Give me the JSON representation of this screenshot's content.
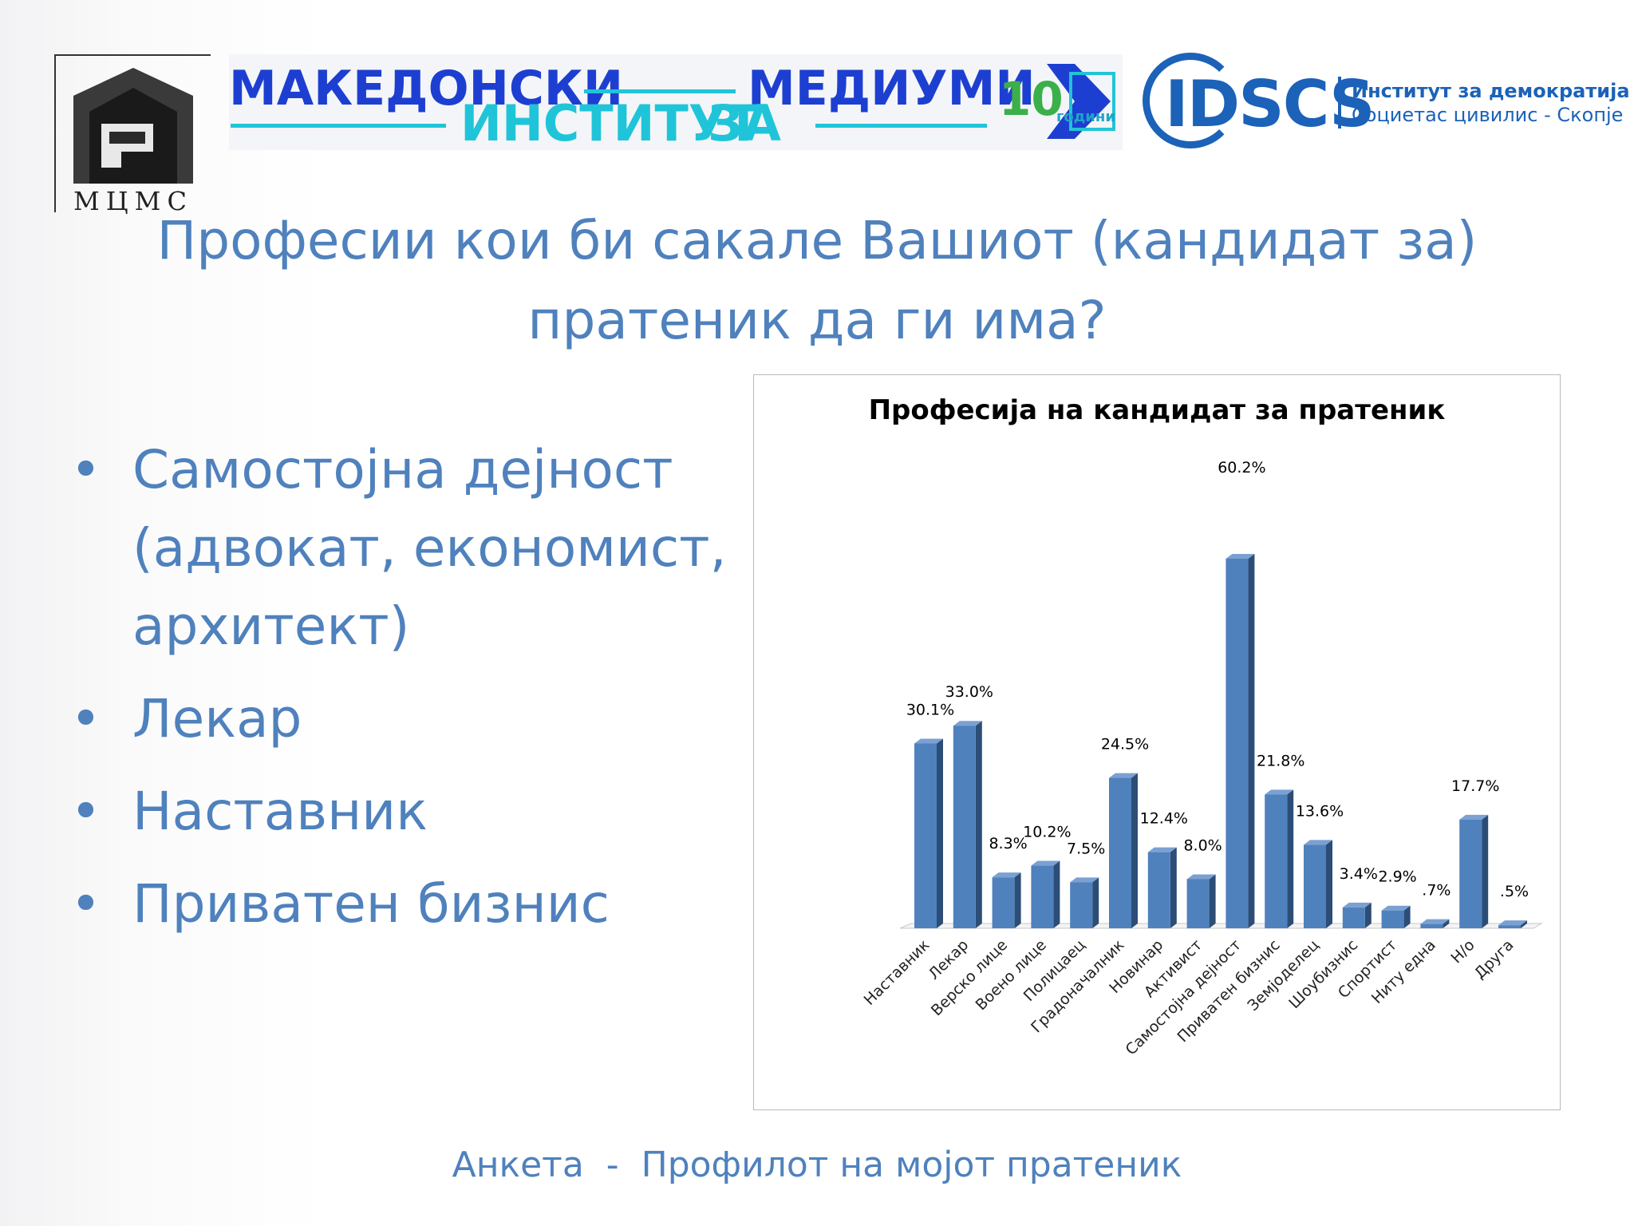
{
  "header": {
    "mcms_logo_text": "МЦМС",
    "mim_logo": {
      "word1": "МАКЕДОНСКИ",
      "word2": "МЕДИУМИ",
      "word3": "ИНСТИТУТ",
      "word4": "ЗА",
      "anniversary_number": "10",
      "anniversary_word": "години"
    },
    "idscs_logo": {
      "acronym": "IDSCS",
      "line1": "Институт за демократија",
      "line2": "Социетас цивилис - Скопје"
    }
  },
  "title": "Професии кои би сакале Вашиот (кандидат за) пратеник да ги има?",
  "bullets": [
    "Самостојна дејност (адвокат, економист, архитект)",
    "Лекар",
    "Наставник",
    "Приватен бизнис"
  ],
  "bullet_symbol": "•",
  "chart_data": {
    "type": "bar",
    "title": "Професија на кандидат за пратеник",
    "categories": [
      "Наставник",
      "Лекар",
      "Верско лице",
      "Воено лице",
      "Полицаец",
      "Градоначалник",
      "Новинар",
      "Активист",
      "Самостојна дејност",
      "Приватен бизнис",
      "Земјоделец",
      "Шоубизнис",
      "Спортист",
      "Ниту една",
      "Н/о",
      "Друга"
    ],
    "values": [
      30.1,
      33.0,
      8.3,
      10.2,
      7.5,
      24.5,
      12.4,
      8.0,
      60.2,
      21.8,
      13.6,
      3.4,
      2.9,
      0.7,
      17.7,
      0.5
    ],
    "data_labels": [
      "30.1%",
      "33.0%",
      "8.3%",
      "10.2%",
      "7.5%",
      "24.5%",
      "12.4%",
      "8.0%",
      "60.2%",
      "21.8%",
      "13.6%",
      "3.4%",
      "2.9%",
      ".7%",
      "17.7%",
      ".5%"
    ],
    "ylim": [
      0,
      60.2
    ],
    "bar_color": "#4f81bd",
    "bar_side_color": "#2c4d75",
    "bar_top_color": "#7ba0d2",
    "grid": false,
    "legend": "none"
  },
  "footer": "Анкета  -  Профилот на мојот пратеник"
}
